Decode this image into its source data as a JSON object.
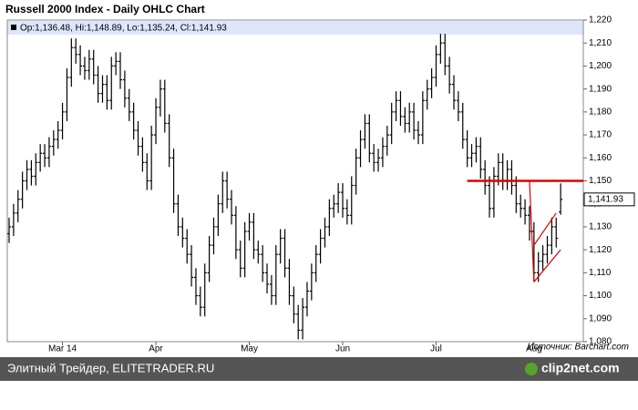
{
  "chart_data": {
    "type": "ohlc",
    "title": "Russell 2000 Index - Daily OHLC Chart",
    "legend": "Op:1,136.48, Hi:1,148.89, Lo:1,135.24, Cl:1,141.93",
    "source": "Источник: Barchart.com",
    "footer": "Элитный Трейдер, ELITETRADER.RU",
    "watermark": "clip2net.com",
    "color": "#000000",
    "categories": [
      null,
      null,
      null,
      null,
      null,
      null,
      null,
      null,
      null,
      null,
      null,
      null,
      "Mar 14",
      null,
      null,
      null,
      null,
      null,
      null,
      null,
      null,
      null,
      null,
      null,
      null,
      null,
      null,
      null,
      null,
      null,
      null,
      null,
      null,
      "Apr",
      null,
      null,
      null,
      null,
      null,
      null,
      null,
      null,
      null,
      null,
      null,
      null,
      null,
      null,
      null,
      null,
      null,
      null,
      null,
      null,
      "May",
      null,
      null,
      null,
      null,
      null,
      null,
      null,
      null,
      null,
      null,
      null,
      null,
      null,
      null,
      null,
      null,
      null,
      null,
      null,
      null,
      "Jun",
      null,
      null,
      null,
      null,
      null,
      null,
      null,
      null,
      null,
      null,
      null,
      null,
      null,
      null,
      null,
      null,
      null,
      null,
      null,
      null,
      "Jul",
      null,
      null,
      null,
      null,
      null,
      null,
      null,
      null,
      null,
      null,
      null,
      null,
      null,
      null,
      null,
      null,
      null,
      null,
      null,
      null,
      null,
      "Aug",
      null,
      null,
      null,
      null,
      null,
      null
    ],
    "open": [
      1127,
      1130,
      1136,
      1142,
      1150,
      1155,
      1152,
      1158,
      1162,
      1160,
      1165,
      1168,
      1172,
      1180,
      1195,
      1208,
      1205,
      1200,
      1198,
      1203,
      1196,
      1188,
      1192,
      1185,
      1200,
      1202,
      1194,
      1186,
      1180,
      1172,
      1165,
      1158,
      1150,
      1170,
      1182,
      1190,
      1175,
      1160,
      1140,
      1130,
      1125,
      1118,
      1108,
      1100,
      1095,
      1110,
      1122,
      1130,
      1140,
      1150,
      1142,
      1135,
      1120,
      1112,
      1128,
      1132,
      1120,
      1118,
      1110,
      1105,
      1100,
      1118,
      1125,
      1112,
      1100,
      1092,
      1085,
      1095,
      1102,
      1110,
      1118,
      1125,
      1130,
      1138,
      1140,
      1145,
      1138,
      1135,
      1148,
      1160,
      1168,
      1175,
      1162,
      1158,
      1160,
      1165,
      1170,
      1180,
      1185,
      1178,
      1175,
      1180,
      1172,
      1170,
      1185,
      1190,
      1195,
      1205,
      1210,
      1200,
      1192,
      1185,
      1180,
      1168,
      1160,
      1162,
      1165,
      1155,
      1148,
      1138,
      1152,
      1158,
      1150,
      1155,
      1148,
      1140,
      1138,
      1135,
      1128,
      1110,
      1115,
      1118,
      1122,
      1130,
      1136.48
    ],
    "high": [
      1134,
      1140,
      1146,
      1154,
      1159,
      1159,
      1162,
      1166,
      1166,
      1169,
      1172,
      1176,
      1184,
      1199,
      1212,
      1212,
      1209,
      1204,
      1207,
      1207,
      1200,
      1196,
      1196,
      1204,
      1206,
      1206,
      1198,
      1190,
      1184,
      1176,
      1169,
      1162,
      1174,
      1186,
      1194,
      1194,
      1179,
      1164,
      1144,
      1134,
      1129,
      1122,
      1112,
      1104,
      1114,
      1126,
      1134,
      1144,
      1154,
      1154,
      1146,
      1139,
      1124,
      1132,
      1136,
      1136,
      1124,
      1122,
      1114,
      1109,
      1122,
      1129,
      1129,
      1116,
      1104,
      1096,
      1099,
      1106,
      1114,
      1122,
      1129,
      1134,
      1142,
      1144,
      1149,
      1149,
      1142,
      1152,
      1164,
      1172,
      1179,
      1179,
      1166,
      1164,
      1169,
      1174,
      1184,
      1189,
      1189,
      1182,
      1184,
      1184,
      1176,
      1189,
      1194,
      1199,
      1209,
      1214,
      1214,
      1204,
      1196,
      1189,
      1184,
      1172,
      1166,
      1169,
      1169,
      1159,
      1152,
      1156,
      1162,
      1162,
      1159,
      1159,
      1152,
      1144,
      1142,
      1139,
      1132,
      1119,
      1122,
      1126,
      1134,
      1134,
      1148.89
    ],
    "low": [
      1123,
      1126,
      1132,
      1138,
      1146,
      1148,
      1148,
      1154,
      1156,
      1156,
      1161,
      1164,
      1168,
      1176,
      1191,
      1201,
      1196,
      1194,
      1194,
      1192,
      1184,
      1184,
      1181,
      1181,
      1196,
      1190,
      1182,
      1176,
      1168,
      1161,
      1154,
      1146,
      1146,
      1166,
      1178,
      1171,
      1156,
      1136,
      1126,
      1121,
      1114,
      1104,
      1096,
      1091,
      1091,
      1106,
      1118,
      1126,
      1136,
      1138,
      1131,
      1116,
      1108,
      1108,
      1124,
      1116,
      1114,
      1106,
      1101,
      1096,
      1096,
      1114,
      1108,
      1096,
      1088,
      1081,
      1081,
      1091,
      1098,
      1106,
      1114,
      1121,
      1126,
      1134,
      1136,
      1134,
      1131,
      1131,
      1144,
      1156,
      1164,
      1158,
      1154,
      1154,
      1156,
      1161,
      1166,
      1176,
      1174,
      1171,
      1171,
      1168,
      1166,
      1166,
      1181,
      1186,
      1191,
      1201,
      1196,
      1188,
      1181,
      1176,
      1164,
      1156,
      1156,
      1158,
      1151,
      1144,
      1134,
      1134,
      1148,
      1146,
      1146,
      1144,
      1136,
      1134,
      1131,
      1124,
      1106,
      1106,
      1111,
      1114,
      1118,
      1121,
      1135.24
    ],
    "close": [
      1130,
      1136,
      1142,
      1150,
      1155,
      1152,
      1158,
      1162,
      1160,
      1165,
      1168,
      1172,
      1180,
      1195,
      1208,
      1205,
      1200,
      1198,
      1203,
      1196,
      1188,
      1192,
      1185,
      1200,
      1202,
      1194,
      1186,
      1180,
      1172,
      1165,
      1158,
      1150,
      1170,
      1182,
      1190,
      1175,
      1160,
      1140,
      1130,
      1125,
      1118,
      1108,
      1100,
      1095,
      1110,
      1122,
      1130,
      1140,
      1150,
      1142,
      1135,
      1120,
      1112,
      1128,
      1132,
      1120,
      1118,
      1110,
      1105,
      1100,
      1118,
      1125,
      1112,
      1100,
      1092,
      1085,
      1095,
      1102,
      1110,
      1118,
      1125,
      1130,
      1138,
      1140,
      1145,
      1138,
      1135,
      1148,
      1160,
      1168,
      1175,
      1162,
      1158,
      1160,
      1165,
      1170,
      1180,
      1185,
      1178,
      1175,
      1180,
      1172,
      1170,
      1185,
      1190,
      1195,
      1205,
      1210,
      1200,
      1192,
      1185,
      1180,
      1168,
      1160,
      1162,
      1165,
      1155,
      1148,
      1138,
      1152,
      1158,
      1150,
      1155,
      1148,
      1140,
      1138,
      1135,
      1128,
      1110,
      1115,
      1118,
      1122,
      1130,
      1125,
      1141.93
    ],
    "last_close_label": "1,141.93",
    "hline": {
      "value": 1150,
      "color": "#e00000"
    },
    "trendlines": [
      {
        "x": [
          117,
          118
        ],
        "y": [
          1150,
          1106
        ],
        "color": "#e00000"
      },
      {
        "x": [
          118,
          124
        ],
        "y": [
          1106,
          1120
        ],
        "color": "#e00000"
      },
      {
        "x": [
          118,
          123
        ],
        "y": [
          1122,
          1136
        ],
        "color": "#e00000"
      }
    ],
    "ylim": [
      1080,
      1220
    ],
    "yticks": [
      {
        "value": 1080,
        "label": "1,080"
      },
      {
        "value": 1090,
        "label": "1,090"
      },
      {
        "value": 1100,
        "label": "1,100"
      },
      {
        "value": 1110,
        "label": "1,110"
      },
      {
        "value": 1120,
        "label": "1,120"
      },
      {
        "value": 1130,
        "label": "1,130"
      },
      {
        "value": 1140,
        "label": "1,140"
      },
      {
        "value": 1150,
        "label": "1,150"
      },
      {
        "value": 1160,
        "label": "1,160"
      },
      {
        "value": 1170,
        "label": "1,170"
      },
      {
        "value": 1180,
        "label": "1,180"
      },
      {
        "value": 1190,
        "label": "1,190"
      },
      {
        "value": 1200,
        "label": "1,200"
      },
      {
        "value": 1210,
        "label": "1,210"
      },
      {
        "value": 1220,
        "label": "1,220"
      }
    ]
  }
}
